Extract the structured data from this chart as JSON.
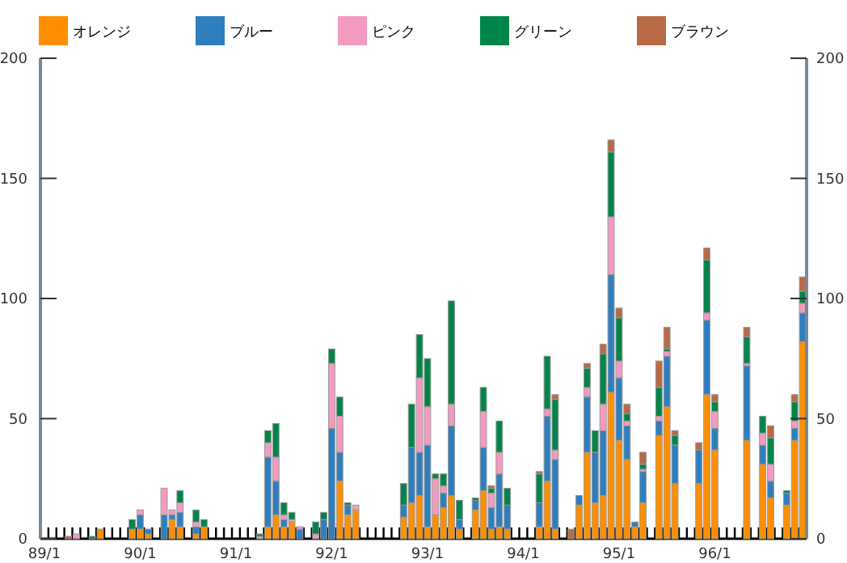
{
  "chart_data": {
    "type": "bar",
    "stacked": true,
    "legend": "top",
    "categories": [
      "89/1",
      null,
      null,
      null,
      null,
      null,
      null,
      null,
      null,
      null,
      null,
      null,
      "90/1",
      null,
      null,
      null,
      null,
      null,
      null,
      null,
      null,
      null,
      null,
      null,
      "91/1",
      null,
      null,
      null,
      null,
      null,
      null,
      null,
      null,
      null,
      null,
      null,
      "92/1",
      null,
      null,
      null,
      null,
      null,
      null,
      null,
      null,
      null,
      null,
      null,
      "93/1",
      null,
      null,
      null,
      null,
      null,
      null,
      null,
      null,
      null,
      null,
      null,
      "94/1",
      null,
      null,
      null,
      null,
      null,
      null,
      null,
      null,
      null,
      null,
      null,
      "95/1",
      null,
      null,
      null,
      null,
      null,
      null,
      null,
      null,
      null,
      null,
      null,
      "96/1",
      null,
      null,
      null,
      null,
      null,
      null,
      null,
      null,
      null,
      null,
      null
    ],
    "ylim": [
      0,
      200
    ],
    "yticks": [
      0,
      50,
      100,
      150,
      200
    ],
    "y2lim": [
      0,
      200
    ],
    "y2ticks": [
      0,
      50,
      100,
      150,
      200
    ],
    "series": [
      {
        "name": "オレンジ",
        "color": "#ff8f00",
        "values": [
          null,
          null,
          null,
          null,
          null,
          null,
          null,
          4,
          null,
          null,
          null,
          4,
          4,
          2,
          null,
          null,
          8,
          5,
          null,
          2,
          5,
          null,
          null,
          null,
          null,
          null,
          null,
          null,
          5,
          10,
          5,
          7,
          null,
          null,
          null,
          null,
          null,
          24,
          10,
          12,
          null,
          null,
          null,
          null,
          null,
          9,
          15,
          18,
          5,
          10,
          13,
          18,
          4,
          null,
          12,
          20,
          4,
          5,
          4,
          null,
          null,
          null,
          5,
          24,
          4,
          null,
          null,
          14,
          36,
          15,
          18,
          61,
          41,
          33,
          5,
          15,
          null,
          43,
          55,
          23,
          null,
          null,
          23,
          60,
          37,
          null,
          null,
          null,
          41,
          null,
          31,
          17,
          null,
          14,
          41,
          82
        ]
      },
      {
        "name": "ブルー",
        "color": "#2f7fbf",
        "values": [
          null,
          null,
          null,
          null,
          null,
          null,
          null,
          null,
          null,
          null,
          null,
          null,
          6,
          2,
          null,
          10,
          2,
          6,
          null,
          3,
          null,
          null,
          null,
          null,
          null,
          null,
          null,
          null,
          29,
          14,
          3,
          null,
          4,
          null,
          null,
          8,
          46,
          12,
          4,
          null,
          null,
          null,
          null,
          null,
          null,
          5,
          23,
          18,
          34,
          null,
          6,
          29,
          4,
          null,
          4,
          18,
          9,
          22,
          10,
          null,
          null,
          null,
          10,
          27,
          29,
          null,
          null,
          4,
          23,
          21,
          27,
          49,
          26,
          14,
          2,
          13,
          null,
          6,
          21,
          16,
          null,
          null,
          14,
          31,
          9,
          null,
          null,
          null,
          31,
          null,
          8,
          7,
          null,
          5,
          5,
          12
        ]
      },
      {
        "name": "ピンク",
        "color": "#f49ac1",
        "values": [
          null,
          null,
          null,
          null,
          2,
          null,
          null,
          null,
          null,
          null,
          null,
          null,
          2,
          null,
          null,
          11,
          2,
          4,
          null,
          2,
          null,
          null,
          null,
          null,
          null,
          null,
          null,
          1,
          6,
          10,
          2,
          1,
          1,
          null,
          2,
          null,
          27,
          15,
          null,
          2,
          null,
          null,
          null,
          null,
          null,
          null,
          null,
          31,
          16,
          15,
          3,
          9,
          null,
          null,
          null,
          15,
          6,
          9,
          null,
          null,
          null,
          null,
          null,
          3,
          4,
          null,
          null,
          null,
          4,
          null,
          11,
          24,
          7,
          2,
          null,
          1,
          null,
          2,
          2,
          null,
          null,
          null,
          null,
          3,
          7,
          null,
          null,
          null,
          1,
          null,
          5,
          7,
          null,
          null,
          3,
          4
        ]
      },
      {
        "name": "グリーン",
        "color": "#008548",
        "values": [
          null,
          null,
          null,
          null,
          null,
          null,
          1,
          null,
          null,
          null,
          null,
          4,
          null,
          null,
          null,
          null,
          null,
          5,
          null,
          5,
          3,
          null,
          null,
          null,
          null,
          null,
          null,
          1,
          5,
          14,
          5,
          3,
          null,
          null,
          5,
          3,
          6,
          8,
          1,
          null,
          null,
          null,
          null,
          null,
          null,
          9,
          18,
          18,
          20,
          2,
          5,
          43,
          8,
          null,
          1,
          10,
          2,
          13,
          7,
          null,
          null,
          null,
          12,
          22,
          21,
          null,
          null,
          null,
          8,
          9,
          21,
          27,
          18,
          3,
          null,
          2,
          null,
          12,
          1,
          4,
          null,
          null,
          null,
          22,
          4,
          null,
          null,
          null,
          11,
          null,
          7,
          11,
          null,
          1,
          8,
          5
        ]
      },
      {
        "name": "ブラウン",
        "color": "#b86945",
        "values": [
          null,
          null,
          null,
          1,
          null,
          null,
          null,
          null,
          null,
          null,
          null,
          null,
          null,
          null,
          null,
          null,
          null,
          null,
          null,
          null,
          null,
          null,
          null,
          null,
          null,
          null,
          null,
          null,
          null,
          null,
          null,
          null,
          null,
          null,
          null,
          null,
          null,
          null,
          null,
          null,
          null,
          null,
          null,
          null,
          null,
          null,
          null,
          null,
          null,
          null,
          null,
          null,
          null,
          null,
          null,
          null,
          1,
          null,
          null,
          null,
          null,
          null,
          1,
          null,
          2,
          null,
          4,
          null,
          2,
          null,
          4,
          5,
          4,
          4,
          null,
          5,
          null,
          11,
          9,
          2,
          null,
          null,
          3,
          5,
          3,
          null,
          null,
          null,
          4,
          null,
          null,
          5,
          null,
          null,
          3,
          6
        ]
      }
    ]
  }
}
